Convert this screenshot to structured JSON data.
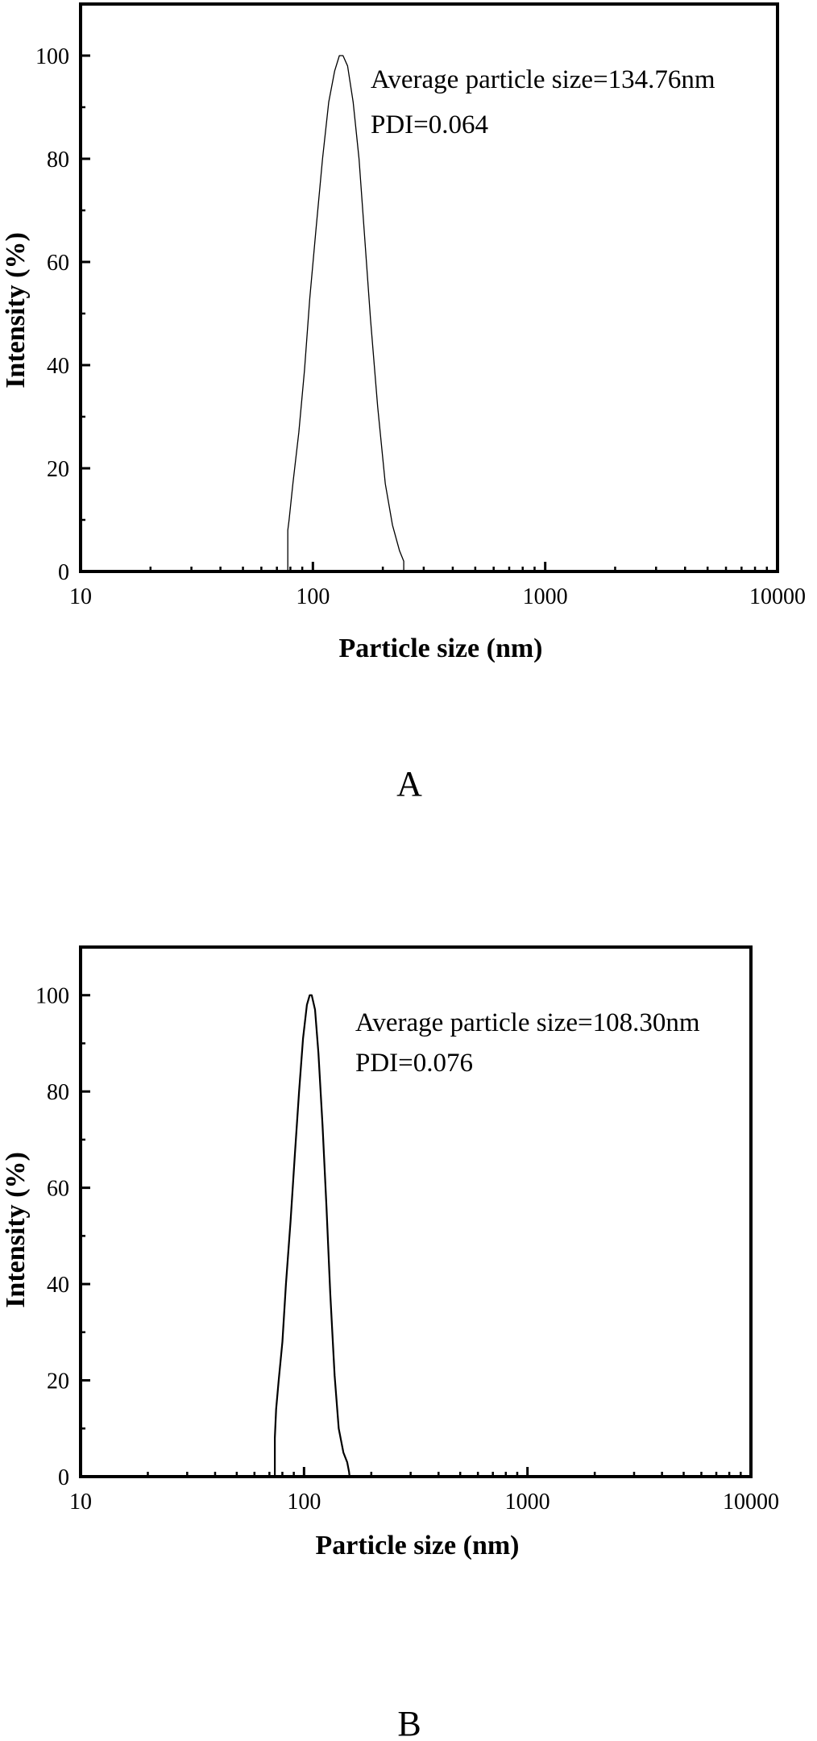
{
  "chart_data": [
    {
      "type": "line",
      "panel_label": "A",
      "xlabel": "Particle size (nm)",
      "ylabel": "Intensity (%)",
      "x_scale": "log",
      "xlim": [
        10,
        10000
      ],
      "ylim": [
        0,
        110
      ],
      "x_ticks": [
        10,
        100,
        1000,
        10000
      ],
      "x_tick_labels": [
        "10",
        "100",
        "1000",
        "10000"
      ],
      "y_ticks": [
        0,
        20,
        40,
        60,
        80,
        100
      ],
      "y_tick_labels": [
        "0",
        "20",
        "40",
        "60",
        "80",
        "100"
      ],
      "grid": false,
      "annotations": [
        "Average particle size=134.76nm",
        "PDI=0.064"
      ],
      "series": [
        {
          "x": [
            78,
            78,
            79,
            82,
            87,
            92,
            97,
            103,
            110,
            117,
            124,
            130,
            134.76,
            141,
            149,
            158,
            167,
            177,
            190,
            205,
            220,
            236,
            246,
            246
          ],
          "y": [
            0,
            8,
            10,
            17,
            27,
            39,
            53,
            66,
            80,
            91,
            97,
            100,
            100,
            98,
            91,
            80,
            65,
            49,
            32,
            17,
            9,
            4,
            2,
            0
          ]
        }
      ]
    },
    {
      "type": "line",
      "panel_label": "B",
      "xlabel": "Particle size (nm)",
      "ylabel": "Intensity (%)",
      "x_scale": "log",
      "xlim": [
        10,
        10000
      ],
      "ylim": [
        0,
        110
      ],
      "x_ticks": [
        10,
        100,
        1000,
        10000
      ],
      "x_tick_labels": [
        "10",
        "100",
        "1000",
        "10000"
      ],
      "y_ticks": [
        0,
        20,
        40,
        60,
        80,
        100
      ],
      "y_tick_labels": [
        "0",
        "20",
        "40",
        "60",
        "80",
        "100"
      ],
      "grid": false,
      "annotations": [
        "Average particle size=108.30nm",
        "PDI=0.076"
      ],
      "series": [
        {
          "x": [
            74,
            74,
            75,
            77,
            80,
            83,
            87,
            91,
            95,
            99,
            103,
            106,
            108.3,
            112,
            116,
            121,
            126,
            131,
            137,
            143,
            150,
            156,
            159,
            160
          ],
          "y": [
            0,
            8,
            14,
            20,
            28,
            40,
            53,
            67,
            80,
            91,
            98,
            100,
            100,
            97,
            88,
            73,
            56,
            38,
            21,
            10,
            5,
            3,
            1,
            0
          ]
        }
      ]
    }
  ]
}
